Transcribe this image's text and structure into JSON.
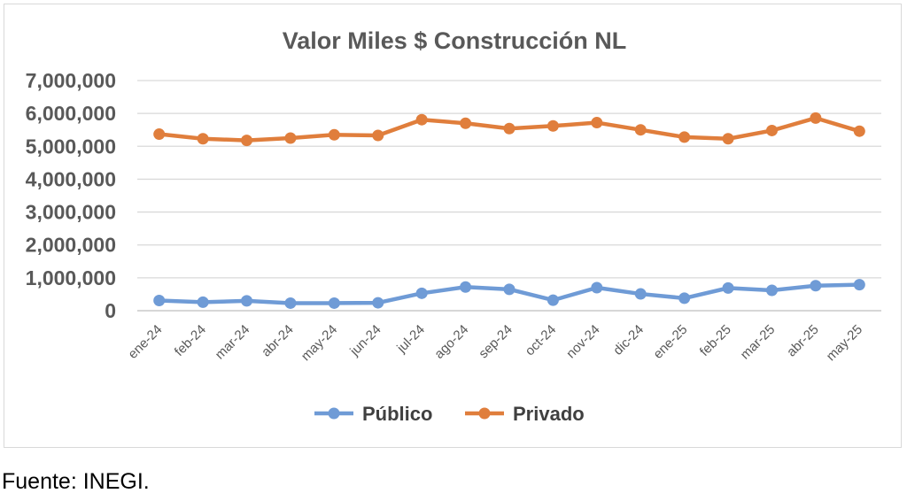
{
  "colors": {
    "series_publico": "#6f9bd6",
    "series_privado": "#e07e3c",
    "grid": "#d9d9d9",
    "text": "#595959"
  },
  "chart_data": {
    "type": "line",
    "title": "Valor Miles $ Construcción NL",
    "categories": [
      "ene-24",
      "feb-24",
      "mar-24",
      "abr-24",
      "may-24",
      "jun-24",
      "jul-24",
      "ago-24",
      "sep-24",
      "oct-24",
      "nov-24",
      "dic-24",
      "ene-25",
      "feb-25",
      "mar-25",
      "abr-25",
      "may-25"
    ],
    "ylim": [
      0,
      7000000
    ],
    "yticks": [
      0,
      1000000,
      2000000,
      3000000,
      4000000,
      5000000,
      6000000,
      7000000
    ],
    "ytick_labels": [
      "0",
      "1,000,000",
      "2,000,000",
      "3,000,000",
      "4,000,000",
      "5,000,000",
      "6,000,000",
      "7,000,000"
    ],
    "grid": true,
    "legend_position": "bottom",
    "series": [
      {
        "name": "Público",
        "color": "#6f9bd6",
        "values": [
          310000,
          260000,
          300000,
          230000,
          230000,
          240000,
          530000,
          720000,
          650000,
          320000,
          700000,
          510000,
          380000,
          690000,
          620000,
          760000,
          790000
        ]
      },
      {
        "name": "Privado",
        "color": "#e07e3c",
        "values": [
          5370000,
          5230000,
          5180000,
          5250000,
          5350000,
          5330000,
          5810000,
          5700000,
          5540000,
          5620000,
          5720000,
          5500000,
          5280000,
          5230000,
          5480000,
          5860000,
          5460000
        ]
      }
    ]
  },
  "footer": {
    "source": "Fuente: INEGI."
  }
}
